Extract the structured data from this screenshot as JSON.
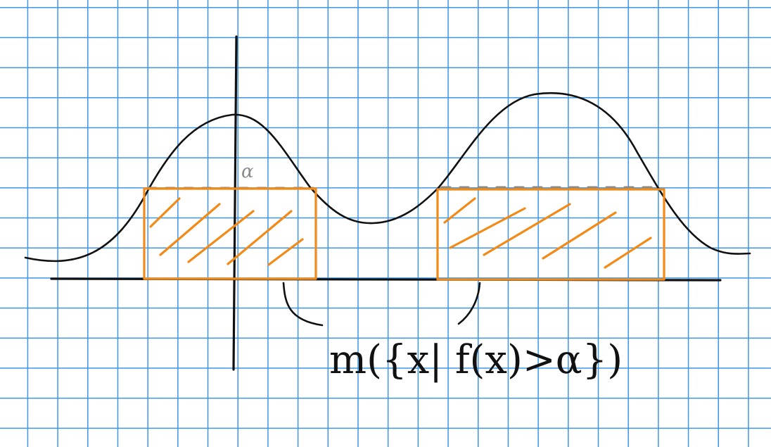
{
  "diagram": {
    "alpha_label": "α",
    "measure_label": "m({x| f(x)>α})",
    "colors": {
      "grid": "#3d95e6",
      "ink": "#111111",
      "highlight": "#f28a17",
      "threshold": "#8a8a8a"
    }
  }
}
